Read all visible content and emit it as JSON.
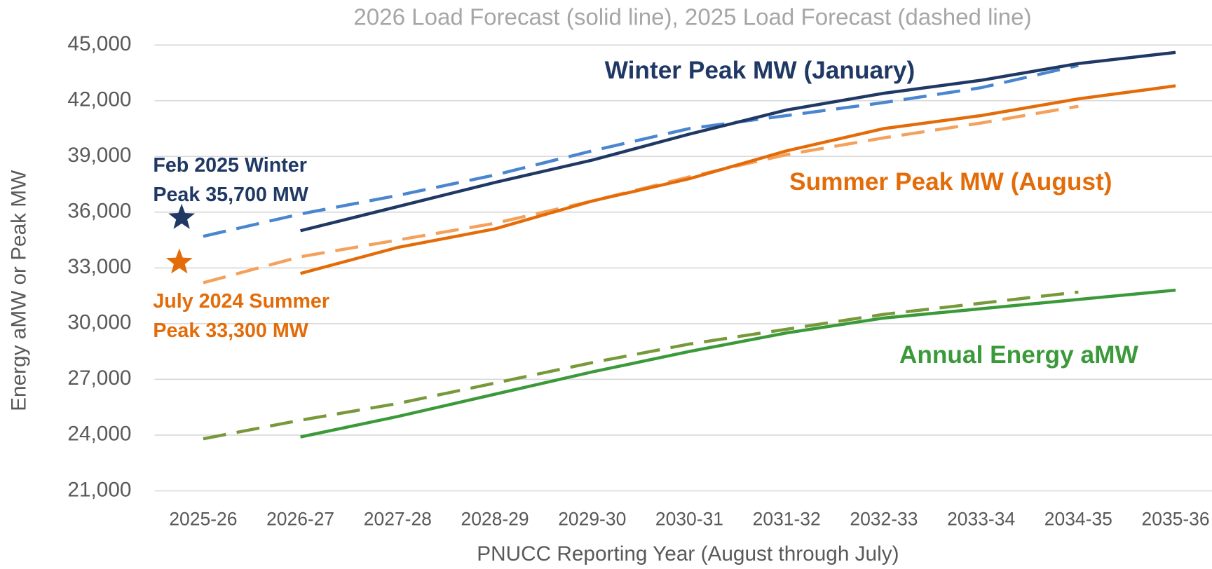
{
  "chart_data": {
    "type": "line",
    "title": "2026 Load Forecast (solid line), 2025 Load Forecast (dashed line)",
    "x_label": "PNUCC Reporting Year (August through July)",
    "y_label": "Energy aMW or Peak MW",
    "categories": [
      "2025-26",
      "2026-27",
      "2027-28",
      "2028-29",
      "2029-30",
      "2030-31",
      "2031-32",
      "2032-33",
      "2033-34",
      "2034-35",
      "2035-36"
    ],
    "ylim": [
      21000,
      45000
    ],
    "yticks": [
      {
        "value": 21000,
        "label": "21,000"
      },
      {
        "value": 24000,
        "label": "24,000"
      },
      {
        "value": 27000,
        "label": "27,000"
      },
      {
        "value": 30000,
        "label": "30,000"
      },
      {
        "value": 33000,
        "label": "33,000"
      },
      {
        "value": 36000,
        "label": "36,000"
      },
      {
        "value": 39000,
        "label": "39,000"
      },
      {
        "value": 42000,
        "label": "42,000"
      },
      {
        "value": 45000,
        "label": "45,000"
      }
    ],
    "grid": true,
    "series": [
      {
        "name": "Winter Peak MW (January)",
        "color": "#1f3864",
        "values": [
          null,
          35000,
          36300,
          37600,
          38800,
          40200,
          41500,
          42400,
          43100,
          44000,
          44600
        ],
        "forecast_2025": {
          "color": "#4a86d0",
          "values": [
            34700,
            35900,
            36900,
            38000,
            39300,
            40500,
            41200,
            41900,
            42700,
            43900,
            null
          ]
        }
      },
      {
        "name": "Summer Peak MW (August)",
        "color": "#e36c09",
        "values": [
          null,
          32700,
          34100,
          35100,
          36600,
          37800,
          39300,
          40500,
          41200,
          42100,
          42800
        ],
        "forecast_2025": {
          "color": "#f4a15c",
          "values": [
            32200,
            33600,
            34500,
            35400,
            36600,
            37900,
            39100,
            40000,
            40800,
            41700,
            null
          ]
        }
      },
      {
        "name": "Annual Energy aMW",
        "color": "#3a9a3a",
        "values": [
          null,
          23900,
          25000,
          26200,
          27400,
          28500,
          29500,
          30300,
          30800,
          31300,
          31800
        ],
        "forecast_2025": {
          "color": "#77993a",
          "values": [
            23800,
            24800,
            25700,
            26800,
            27900,
            28900,
            29700,
            30500,
            31100,
            31700,
            null
          ]
        }
      }
    ],
    "annotations": [
      {
        "text": [
          "Feb 2025 Winter",
          "Peak 35,700 MW"
        ],
        "value": 35700,
        "color": "#1f3864"
      },
      {
        "text": [
          "July 2024 Summer",
          "Peak 33,300 MW"
        ],
        "value": 33300,
        "color": "#e36c09"
      }
    ]
  }
}
